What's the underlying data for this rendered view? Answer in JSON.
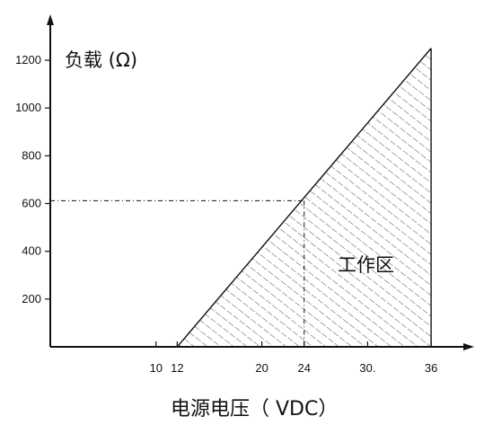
{
  "chart_data": {
    "type": "area",
    "title": "",
    "ylabel": "负载 (Ω)",
    "xlabel": "电源电压（ VDC）",
    "x_ticks": [
      10,
      12,
      20,
      24,
      30,
      36
    ],
    "x_tick_labels": [
      "10",
      "12",
      "20",
      "24",
      "30.",
      "36"
    ],
    "y_ticks": [
      200,
      400,
      600,
      800,
      1000,
      1200
    ],
    "y_tick_labels": [
      "200",
      "400",
      "600",
      "800",
      "1000",
      "1200"
    ],
    "xlim": [
      0,
      40
    ],
    "ylim": [
      0,
      1300
    ],
    "grid": false,
    "region": {
      "label": "工作区",
      "polygon_x": [
        12,
        36,
        36
      ],
      "polygon_y": [
        0,
        1250,
        0
      ]
    },
    "reference": {
      "x": 24,
      "y": 612
    }
  }
}
